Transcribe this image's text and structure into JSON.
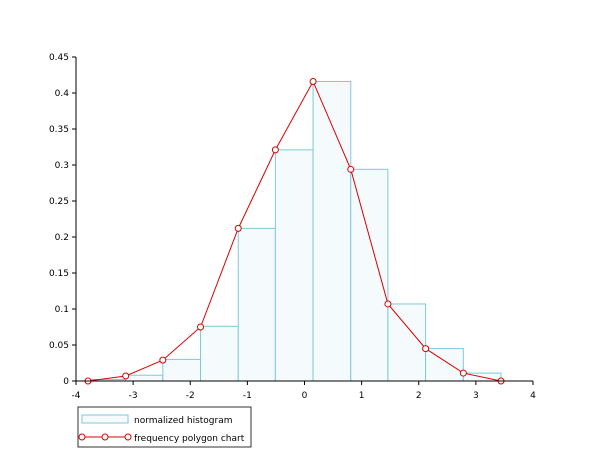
{
  "colors": {
    "background": "#ffffff",
    "axis": "#000000",
    "histogram_fill": "#f5fbfd",
    "histogram_edge": "#7ec8dc",
    "polygon": "#dd0000",
    "marker_fill": "#ffffff"
  },
  "chart_data": {
    "type": "bar",
    "title": "",
    "xlabel": "",
    "ylabel": "",
    "xlim": [
      -4,
      4
    ],
    "ylim": [
      0,
      0.45
    ],
    "grid": false,
    "legend_position": "bottom-left, outside plot",
    "x_ticks": [
      -4,
      -3,
      -2,
      -1,
      0,
      1,
      2,
      3,
      4
    ],
    "y_ticks": [
      0,
      0.05,
      0.1,
      0.15,
      0.2,
      0.25,
      0.3,
      0.35,
      0.4,
      0.45
    ],
    "histogram": {
      "name": "normalized histogram",
      "bin_edges": [
        -3.79,
        -3.13,
        -2.48,
        -1.82,
        -1.16,
        -0.51,
        0.15,
        0.81,
        1.46,
        2.12,
        2.78,
        3.44
      ],
      "heights": [
        0.002,
        0.008,
        0.03,
        0.076,
        0.212,
        0.321,
        0.416,
        0.294,
        0.107,
        0.045,
        0.011
      ]
    },
    "polygon": {
      "name": "frequency polygon chart",
      "x": [
        -3.79,
        -3.13,
        -2.48,
        -1.82,
        -1.16,
        -0.51,
        0.15,
        0.81,
        1.46,
        2.12,
        2.78,
        3.44
      ],
      "y": [
        0.0,
        0.007,
        0.029,
        0.075,
        0.212,
        0.321,
        0.416,
        0.294,
        0.107,
        0.045,
        0.011,
        0.0
      ]
    }
  }
}
